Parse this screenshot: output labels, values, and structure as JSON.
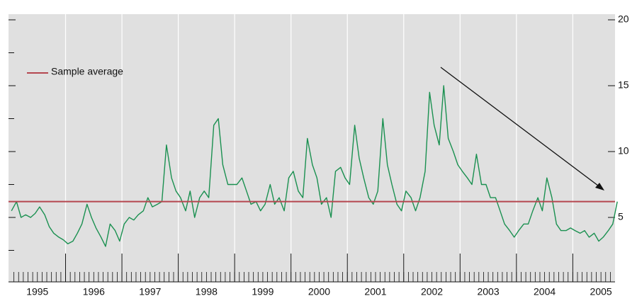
{
  "chart_data": {
    "type": "line",
    "legend": "Sample average",
    "average": 6.2,
    "average_color": "#b5474f",
    "xlim": [
      1995,
      2005.8
    ],
    "ylim": [
      0,
      20
    ],
    "yticks": [
      5,
      10,
      15,
      20
    ],
    "xticks": [
      {
        "value": 1995.5,
        "label": "1995"
      },
      {
        "value": 1996.5,
        "label": "1996"
      },
      {
        "value": 1997.5,
        "label": "1997"
      },
      {
        "value": 1998.5,
        "label": "1998"
      },
      {
        "value": 1999.5,
        "label": "1999"
      },
      {
        "value": 2000.5,
        "label": "2000"
      },
      {
        "value": 2001.5,
        "label": "2001"
      },
      {
        "value": 2002.5,
        "label": "2002"
      },
      {
        "value": 2003.5,
        "label": "2003"
      },
      {
        "value": 2004.5,
        "label": "2004"
      },
      {
        "value": 2005.5,
        "label": "2005"
      }
    ],
    "xgrid": [
      1996,
      1997,
      1998,
      1999,
      2000,
      2001,
      2002,
      2003,
      2004,
      2005
    ],
    "series": [
      {
        "name": "Sample",
        "color": "#1a9050",
        "x": [
          1995.04,
          1995.13,
          1995.21,
          1995.29,
          1995.38,
          1995.46,
          1995.54,
          1995.63,
          1995.71,
          1995.79,
          1995.88,
          1995.96,
          1996.04,
          1996.13,
          1996.21,
          1996.29,
          1996.38,
          1996.46,
          1996.54,
          1996.63,
          1996.71,
          1996.79,
          1996.88,
          1996.96,
          1997.04,
          1997.13,
          1997.21,
          1997.29,
          1997.38,
          1997.46,
          1997.54,
          1997.63,
          1997.71,
          1997.79,
          1997.88,
          1997.96,
          1998.04,
          1998.13,
          1998.21,
          1998.29,
          1998.38,
          1998.46,
          1998.54,
          1998.63,
          1998.71,
          1998.79,
          1998.88,
          1998.96,
          1999.04,
          1999.13,
          1999.21,
          1999.29,
          1999.38,
          1999.46,
          1999.54,
          1999.63,
          1999.71,
          1999.79,
          1999.88,
          1999.96,
          2000.04,
          2000.13,
          2000.21,
          2000.29,
          2000.38,
          2000.46,
          2000.54,
          2000.63,
          2000.71,
          2000.79,
          2000.88,
          2000.96,
          2001.04,
          2001.13,
          2001.21,
          2001.29,
          2001.38,
          2001.46,
          2001.54,
          2001.63,
          2001.71,
          2001.79,
          2001.88,
          2001.96,
          2002.04,
          2002.13,
          2002.21,
          2002.29,
          2002.38,
          2002.46,
          2002.54,
          2002.63,
          2002.71,
          2002.79,
          2002.88,
          2002.96,
          2003.04,
          2003.13,
          2003.21,
          2003.29,
          2003.38,
          2003.46,
          2003.54,
          2003.63,
          2003.71,
          2003.79,
          2003.88,
          2003.96,
          2004.04,
          2004.13,
          2004.21,
          2004.29,
          2004.38,
          2004.46,
          2004.54,
          2004.63,
          2004.71,
          2004.79,
          2004.88,
          2004.96,
          2005.04,
          2005.13,
          2005.21,
          2005.29,
          2005.38,
          2005.46,
          2005.54,
          2005.63,
          2005.71,
          2005.79
        ],
        "values": [
          5.5,
          6.2,
          5.0,
          5.2,
          5.0,
          5.3,
          5.8,
          5.2,
          4.3,
          3.8,
          3.5,
          3.3,
          3.0,
          3.2,
          3.8,
          4.5,
          6.0,
          5.0,
          4.2,
          3.5,
          2.8,
          4.5,
          4.0,
          3.2,
          4.5,
          5.0,
          4.8,
          5.2,
          5.5,
          6.5,
          5.8,
          6.0,
          6.2,
          10.5,
          8.0,
          7.0,
          6.5,
          5.5,
          7.0,
          5.0,
          6.5,
          7.0,
          6.5,
          12.0,
          12.5,
          9.0,
          7.5,
          7.5,
          7.5,
          8.0,
          7.0,
          6.0,
          6.2,
          5.5,
          6.0,
          7.5,
          6.0,
          6.5,
          5.5,
          8.0,
          8.5,
          7.0,
          6.5,
          11.0,
          9.0,
          8.0,
          6.0,
          6.5,
          5.0,
          8.5,
          8.8,
          8.0,
          7.5,
          12.0,
          9.5,
          8.0,
          6.5,
          6.0,
          7.0,
          12.5,
          9.0,
          7.5,
          6.0,
          5.5,
          7.0,
          6.5,
          5.5,
          6.5,
          8.5,
          14.5,
          12.0,
          10.5,
          15.0,
          11.0,
          10.0,
          9.0,
          8.5,
          8.0,
          7.5,
          9.8,
          7.5,
          7.5,
          6.5,
          6.5,
          5.5,
          4.5,
          4.0,
          3.5,
          4.0,
          4.5,
          4.5,
          5.5,
          6.5,
          5.5,
          8.0,
          6.5,
          4.5,
          4.0,
          4.0,
          4.2,
          4.0,
          3.8,
          4.0,
          3.5,
          3.8,
          3.2,
          3.5,
          4.0,
          4.5,
          6.2
        ]
      }
    ]
  }
}
